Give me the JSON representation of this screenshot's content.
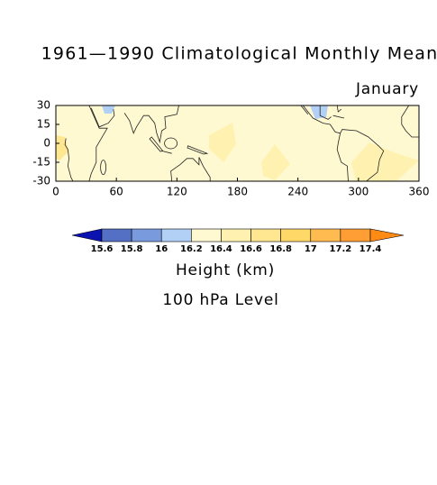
{
  "chart_data": {
    "type": "map",
    "title": "1961—1990 Climatological Monthly Mean",
    "subtitle": "January",
    "xlim": [
      0,
      360
    ],
    "xticks": [
      0,
      60,
      120,
      180,
      240,
      300,
      360
    ],
    "ylim": [
      -30,
      30
    ],
    "yticks": [
      30,
      15,
      0,
      -15,
      -30
    ],
    "colorbar": {
      "levels": [
        15.6,
        15.8,
        16,
        16.2,
        16.4,
        16.6,
        16.8,
        17,
        17.2,
        17.4
      ],
      "colors": [
        "#0a12b0",
        "#5470c4",
        "#7a9ade",
        "#b2d0f6",
        "#fff9d2",
        "#fff2b0",
        "#ffe690",
        "#ffd868",
        "#ffba50",
        "#ff9e34",
        "#ff8a14"
      ]
    },
    "colorbar_label": "Height (km)",
    "level_label": "100 hPa Level"
  }
}
